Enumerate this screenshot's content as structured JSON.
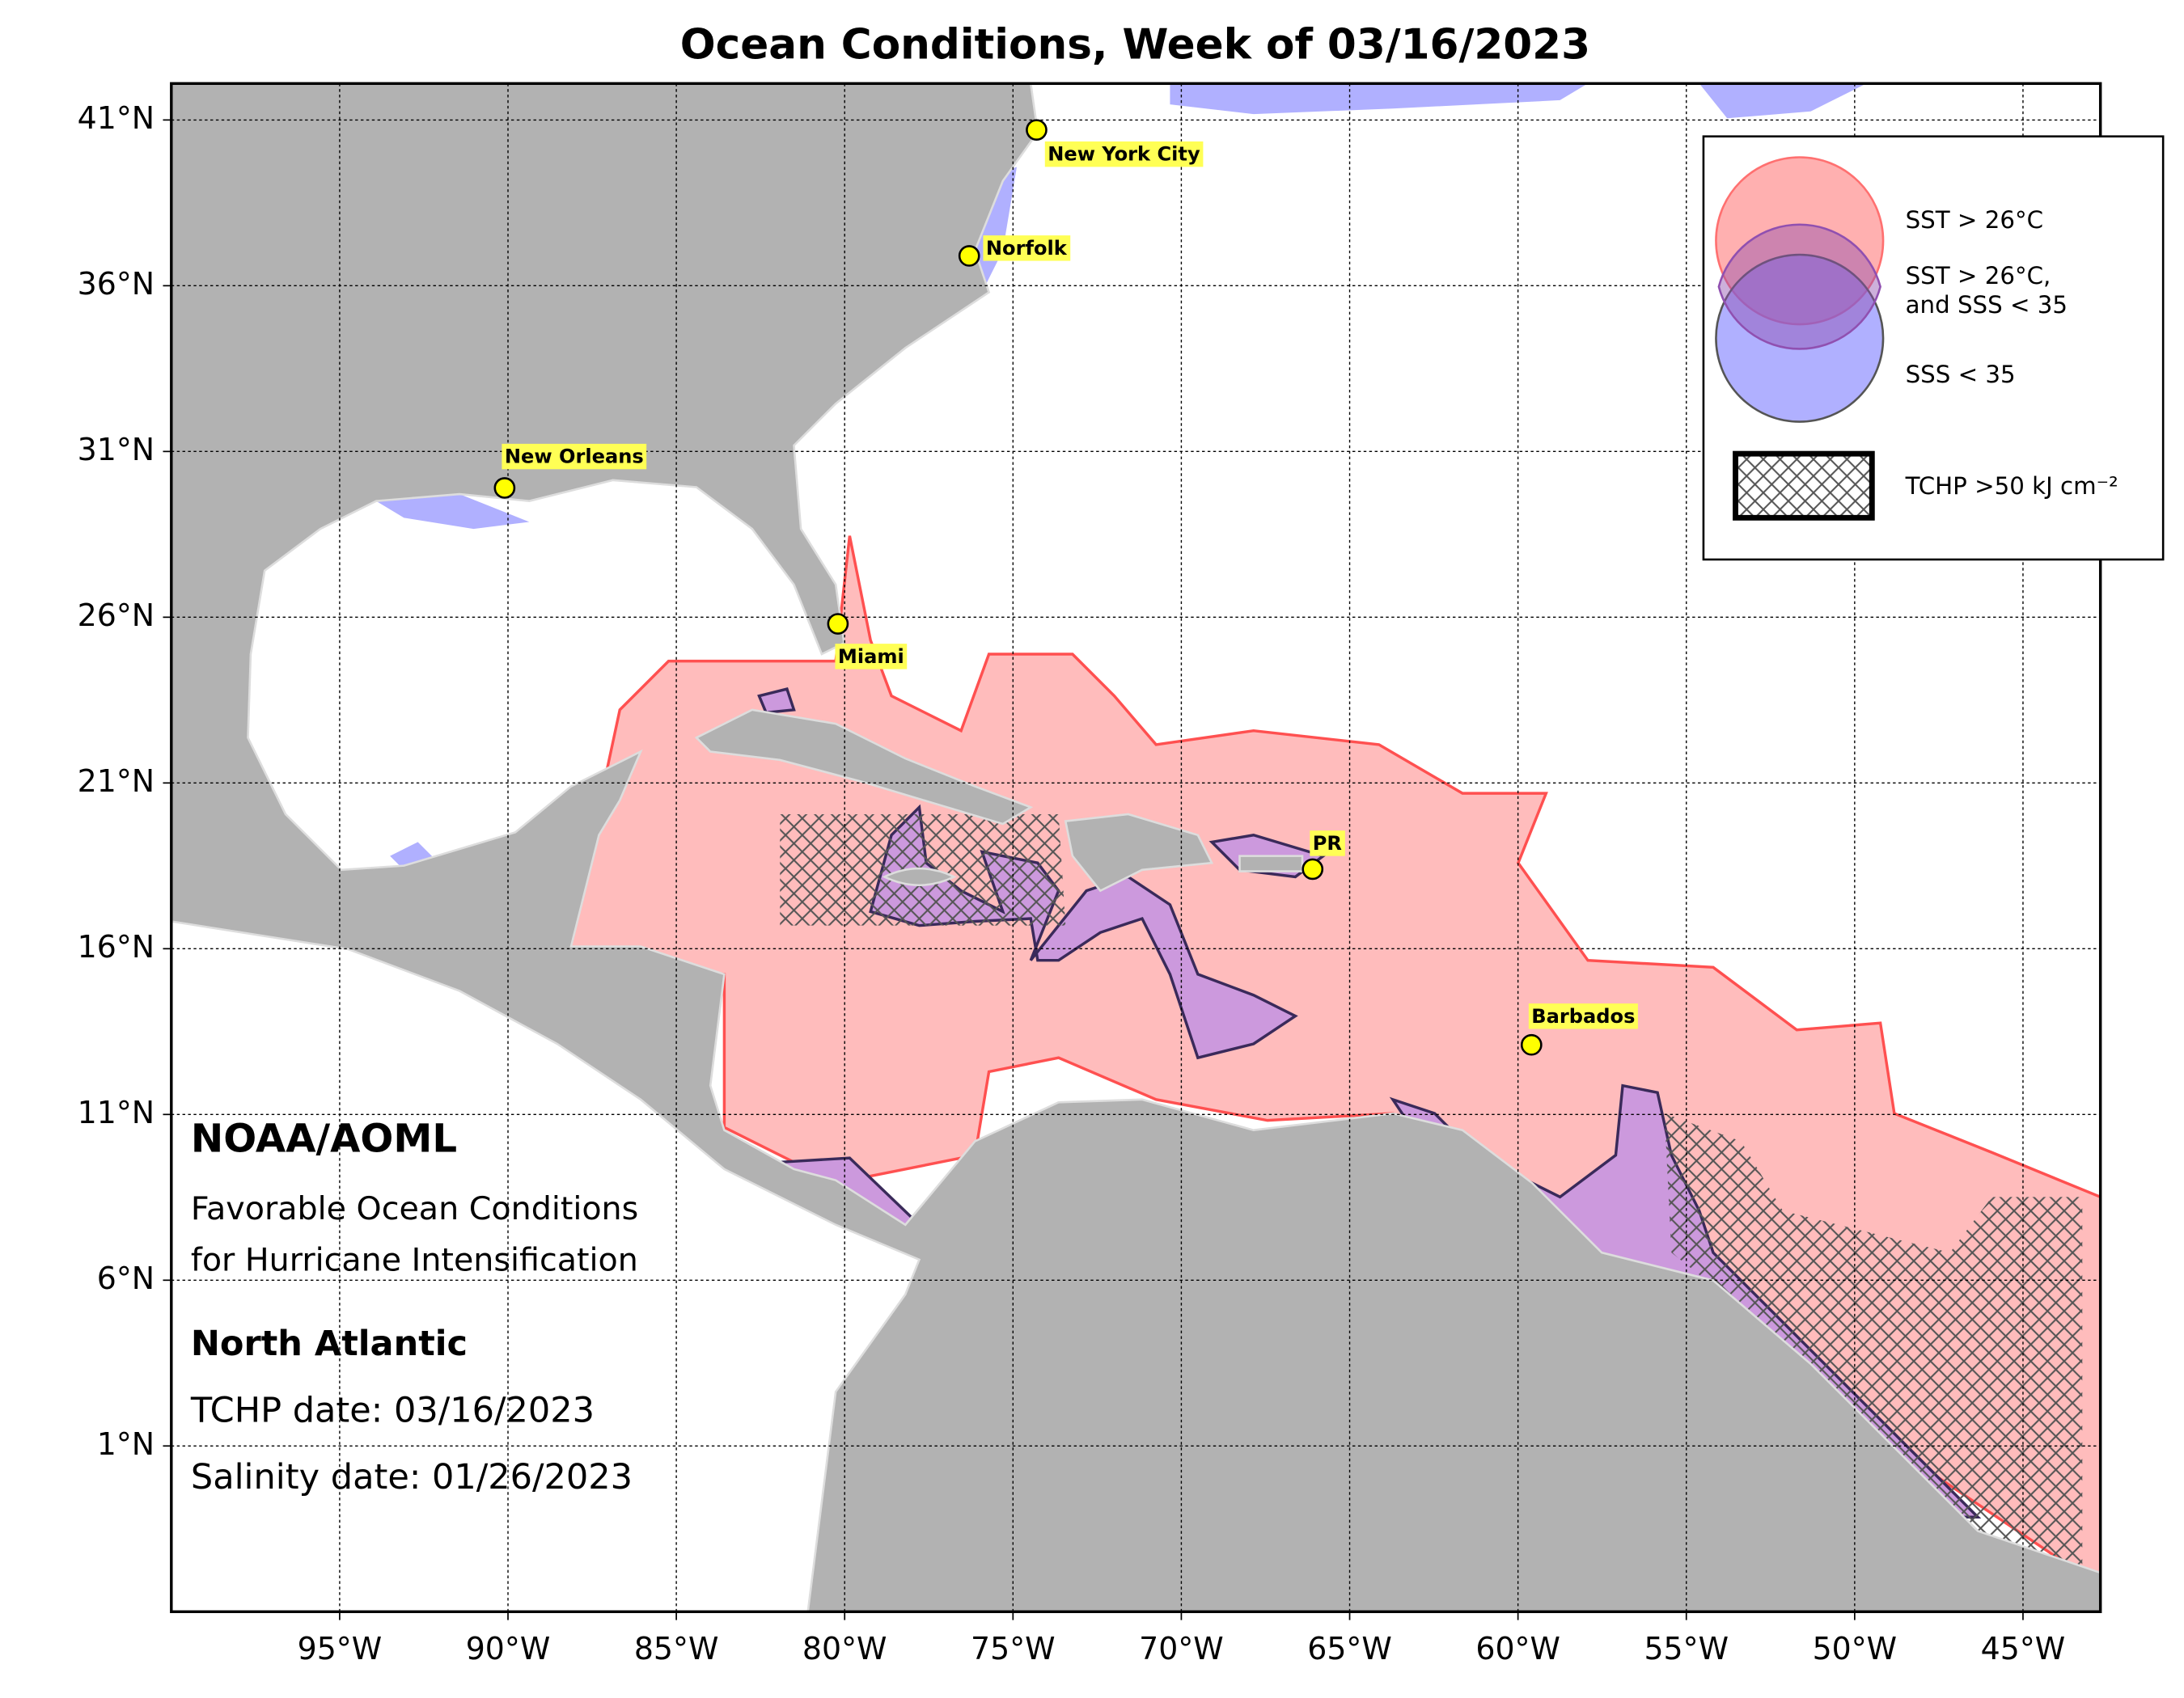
{
  "title": "Ocean Conditions, Week of 03/16/2023",
  "map": {
    "xlim": [
      -100,
      -42.7
    ],
    "ylim": [
      -4,
      42.1
    ],
    "grid": true,
    "xticks": [
      {
        "value": -95,
        "label": "95°W"
      },
      {
        "value": -90,
        "label": "90°W"
      },
      {
        "value": -85,
        "label": "85°W"
      },
      {
        "value": -80,
        "label": "80°W"
      },
      {
        "value": -75,
        "label": "75°W"
      },
      {
        "value": -70,
        "label": "70°W"
      },
      {
        "value": -65,
        "label": "65°W"
      },
      {
        "value": -60,
        "label": "60°W"
      },
      {
        "value": -55,
        "label": "55°W"
      },
      {
        "value": -50,
        "label": "50°W"
      },
      {
        "value": -45,
        "label": "45°W"
      }
    ],
    "yticks": [
      {
        "value": 1,
        "label": "1°N"
      },
      {
        "value": 6,
        "label": "6°N"
      },
      {
        "value": 11,
        "label": "11°N"
      },
      {
        "value": 16,
        "label": "16°N"
      },
      {
        "value": 21,
        "label": "21°N"
      },
      {
        "value": 26,
        "label": "26°N"
      },
      {
        "value": 31,
        "label": "31°N"
      },
      {
        "value": 36,
        "label": "36°N"
      },
      {
        "value": 41,
        "label": "41°N"
      }
    ]
  },
  "cities": [
    {
      "name": "New York City",
      "lon": -74.3,
      "lat": 40.7
    },
    {
      "name": "Norfolk",
      "lon": -76.3,
      "lat": 36.9
    },
    {
      "name": "New Orleans",
      "lon": -90.1,
      "lat": 29.9
    },
    {
      "name": "Miami",
      "lon": -80.2,
      "lat": 25.8
    },
    {
      "name": "PR",
      "lon": -66.1,
      "lat": 18.4
    },
    {
      "name": "Barbados",
      "lon": -59.6,
      "lat": 13.1
    }
  ],
  "legend": [
    {
      "lines": [
        "SST > 26°C"
      ],
      "color": "#ff7070"
    },
    {
      "lines": [
        "SST > 26°C,",
        "and SSS < 35"
      ],
      "color": "#9050b0"
    },
    {
      "lines": [
        "SSS < 35"
      ],
      "color": "#7070ff"
    },
    {
      "lines": [
        "TCHP >50 kJ cm⁻²"
      ],
      "color": "#000000"
    }
  ],
  "info": {
    "org": "NOAA/AOML",
    "subtitle": [
      "Favorable Ocean Conditions",
      "for Hurricane Intensification"
    ],
    "region": "North Atlantic",
    "tchp_date": "TCHP date: 03/16/2023",
    "salinity_date": "Salinity date: 01/26/2023"
  }
}
